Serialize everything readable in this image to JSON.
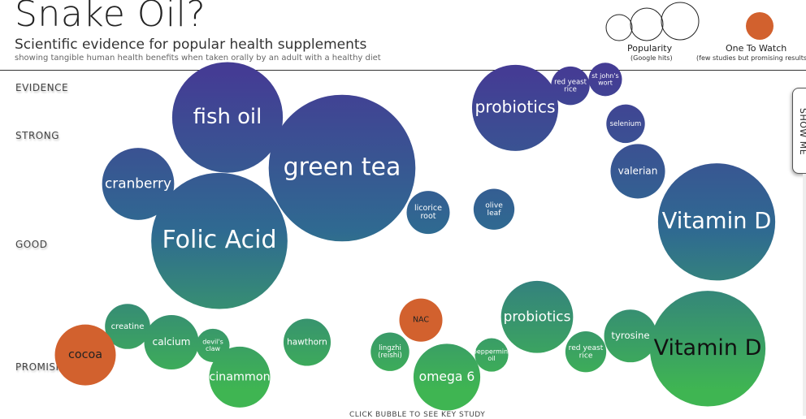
{
  "header": {
    "title": "Snake Oil?",
    "subtitle": "Scientific evidence for popular health supplements",
    "description": "showing tangible human health benefits when taken orally by an adult with a healthy diet"
  },
  "legend": {
    "popularity_label": "Popularity",
    "popularity_sub": "(Google hits)",
    "watch_label": "One To Watch",
    "watch_sub": "(few studies but promising results)",
    "watch_color": "#d2612e"
  },
  "axis": {
    "title": "EVIDENCE",
    "levels": [
      "STRONG",
      "GOOD",
      "PROMISING"
    ]
  },
  "controls": {
    "show_me_label": "SHOW ME",
    "hint": "CLICK BUBBLE TO SEE KEY STUDY"
  },
  "colors": {
    "strong": "#443c94",
    "mid": "#2f6a91",
    "promising": "#3fb552",
    "watch": "#d2612e",
    "label": "#ffffff"
  },
  "chart_data": {
    "type": "bubble",
    "evidence_scale": [
      "PROMISING",
      "GOOD",
      "STRONG"
    ],
    "bubbles": [
      {
        "name": "fish oil",
        "evidence": 0.86,
        "popularity": 3.3,
        "watch": false
      },
      {
        "name": "green tea",
        "evidence": 0.7,
        "popularity": 5.8,
        "watch": false
      },
      {
        "name": "cranberry",
        "evidence": 0.65,
        "popularity": 1.4,
        "watch": false
      },
      {
        "name": "Folic Acid",
        "evidence": 0.47,
        "popularity": 5.0,
        "watch": false
      },
      {
        "name": "licorice root",
        "evidence": 0.56,
        "popularity": 0.5,
        "watch": false
      },
      {
        "name": "olive leaf",
        "evidence": 0.57,
        "popularity": 0.45,
        "watch": false
      },
      {
        "name": "probiotics",
        "evidence": 0.89,
        "popularity": 2.0,
        "watch": false
      },
      {
        "name": "red yeast rice",
        "evidence": 0.96,
        "popularity": 0.4,
        "watch": false
      },
      {
        "name": "st john's wort",
        "evidence": 0.98,
        "popularity": 0.3,
        "watch": false
      },
      {
        "name": "selenium",
        "evidence": 0.84,
        "popularity": 0.4,
        "watch": false
      },
      {
        "name": "valerian",
        "evidence": 0.69,
        "popularity": 0.8,
        "watch": false
      },
      {
        "name": "Vitamin D",
        "evidence": 0.53,
        "popularity": 3.7,
        "watch": false
      },
      {
        "name": "creatine",
        "evidence": 0.2,
        "popularity": 0.55,
        "watch": false
      },
      {
        "name": "calcium",
        "evidence": 0.15,
        "popularity": 0.8,
        "watch": false
      },
      {
        "name": "devil's claw",
        "evidence": 0.14,
        "popularity": 0.3,
        "watch": false
      },
      {
        "name": "cinammon",
        "evidence": 0.04,
        "popularity": 1.0,
        "watch": false
      },
      {
        "name": "hawthorn",
        "evidence": 0.15,
        "popularity": 0.6,
        "watch": false
      },
      {
        "name": "lingzhi (reishi)",
        "evidence": 0.12,
        "popularity": 0.4,
        "watch": false
      },
      {
        "name": "NAC",
        "evidence": 0.22,
        "popularity": 0.5,
        "watch": true
      },
      {
        "name": "omega 6",
        "evidence": 0.04,
        "popularity": 1.2,
        "watch": false
      },
      {
        "name": "peppermint oil",
        "evidence": 0.11,
        "popularity": 0.3,
        "watch": false
      },
      {
        "name": "probiotics",
        "evidence": 0.23,
        "popularity": 1.4,
        "watch": false
      },
      {
        "name": "red yeast rice",
        "evidence": 0.12,
        "popularity": 0.45,
        "watch": false
      },
      {
        "name": "tyrosine",
        "evidence": 0.17,
        "popularity": 0.75,
        "watch": false
      },
      {
        "name": "Vitamin D",
        "evidence": 0.13,
        "popularity": 3.6,
        "watch": false
      },
      {
        "name": "cocoa",
        "evidence": 0.11,
        "popularity": 1.0,
        "watch": true
      }
    ]
  }
}
